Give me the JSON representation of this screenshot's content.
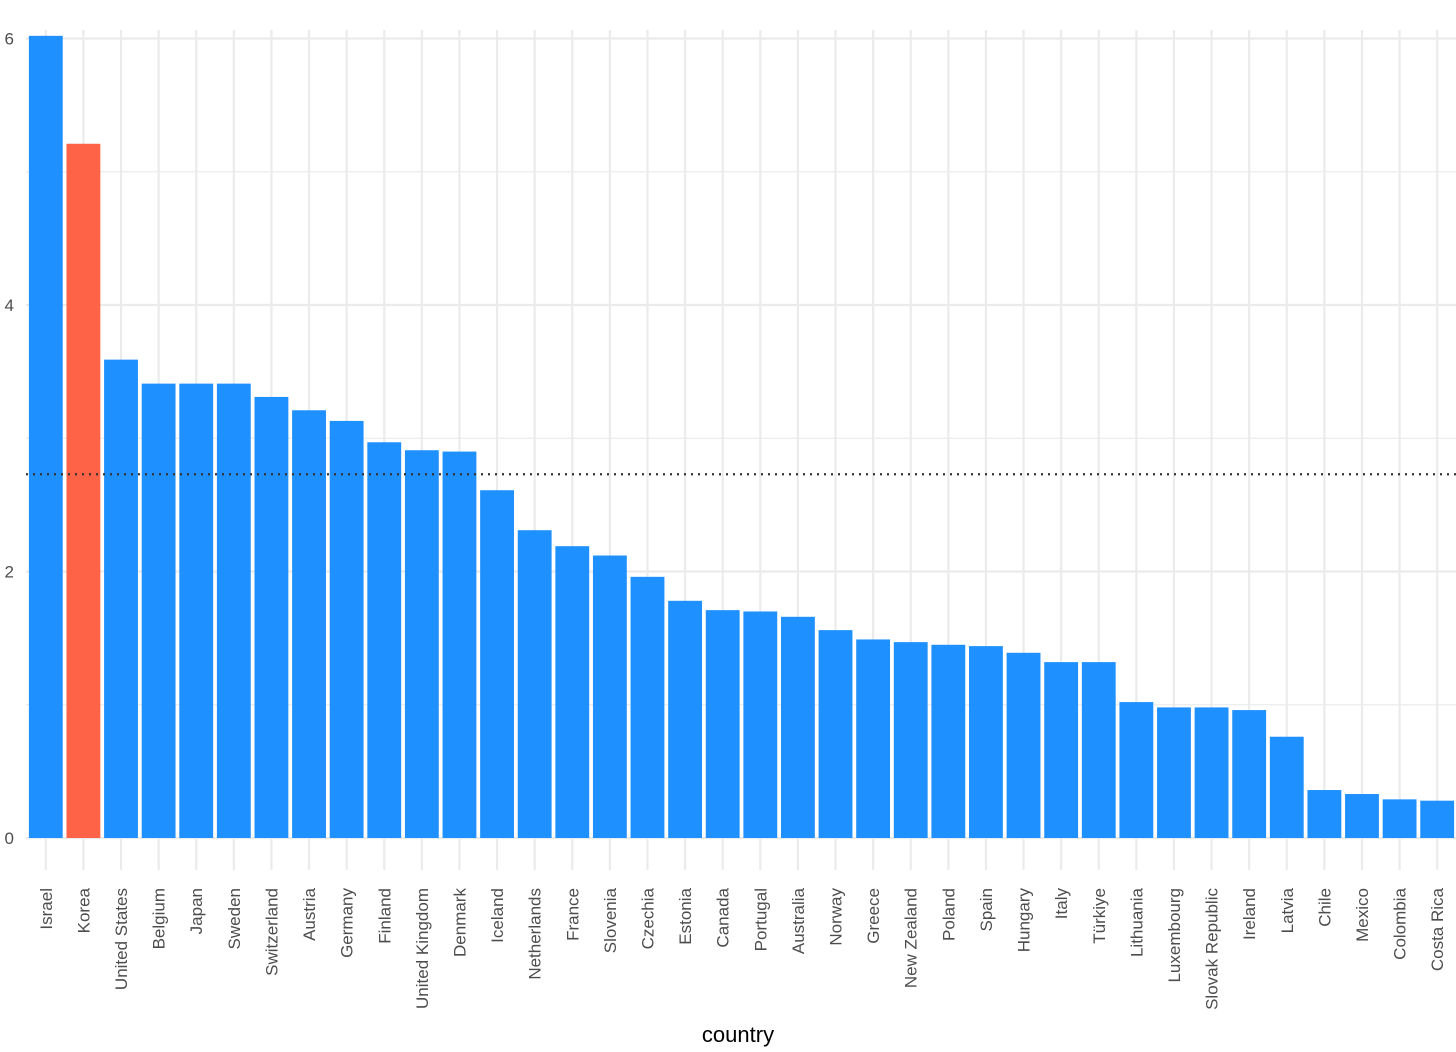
{
  "chart_data": {
    "type": "bar",
    "title": "",
    "xlabel": "country",
    "ylabel": "",
    "ylim": [
      0,
      6
    ],
    "yticks": [
      0,
      2,
      4,
      6
    ],
    "grid": true,
    "legend": "none",
    "categories": [
      "Israel",
      "Korea",
      "United States",
      "Belgium",
      "Japan",
      "Sweden",
      "Switzerland",
      "Austria",
      "Germany",
      "Finland",
      "United Kingdom",
      "Denmark",
      "Iceland",
      "Netherlands",
      "France",
      "Slovenia",
      "Czechia",
      "Estonia",
      "Canada",
      "Portugal",
      "Australia",
      "Norway",
      "Greece",
      "New Zealand",
      "Poland",
      "Spain",
      "Hungary",
      "Italy",
      "Türkiye",
      "Lithuania",
      "Luxembourg",
      "Slovak Republic",
      "Ireland",
      "Latvia",
      "Chile",
      "Mexico",
      "Colombia",
      "Costa Rica"
    ],
    "values": [
      6.02,
      5.21,
      3.59,
      3.41,
      3.41,
      3.41,
      3.31,
      3.21,
      3.13,
      2.97,
      2.91,
      2.9,
      2.61,
      2.31,
      2.19,
      2.12,
      1.96,
      1.78,
      1.71,
      1.7,
      1.66,
      1.56,
      1.49,
      1.47,
      1.45,
      1.44,
      1.39,
      1.32,
      1.32,
      1.02,
      0.98,
      0.98,
      0.96,
      0.76,
      0.36,
      0.33,
      0.29,
      0.28
    ],
    "highlight": "Korea",
    "reference_line": 2.73,
    "colors": {
      "bar": "#1E90FF",
      "highlight": "#FF6347",
      "grid": "#EBEBEB",
      "reference_line": "#333333"
    }
  }
}
